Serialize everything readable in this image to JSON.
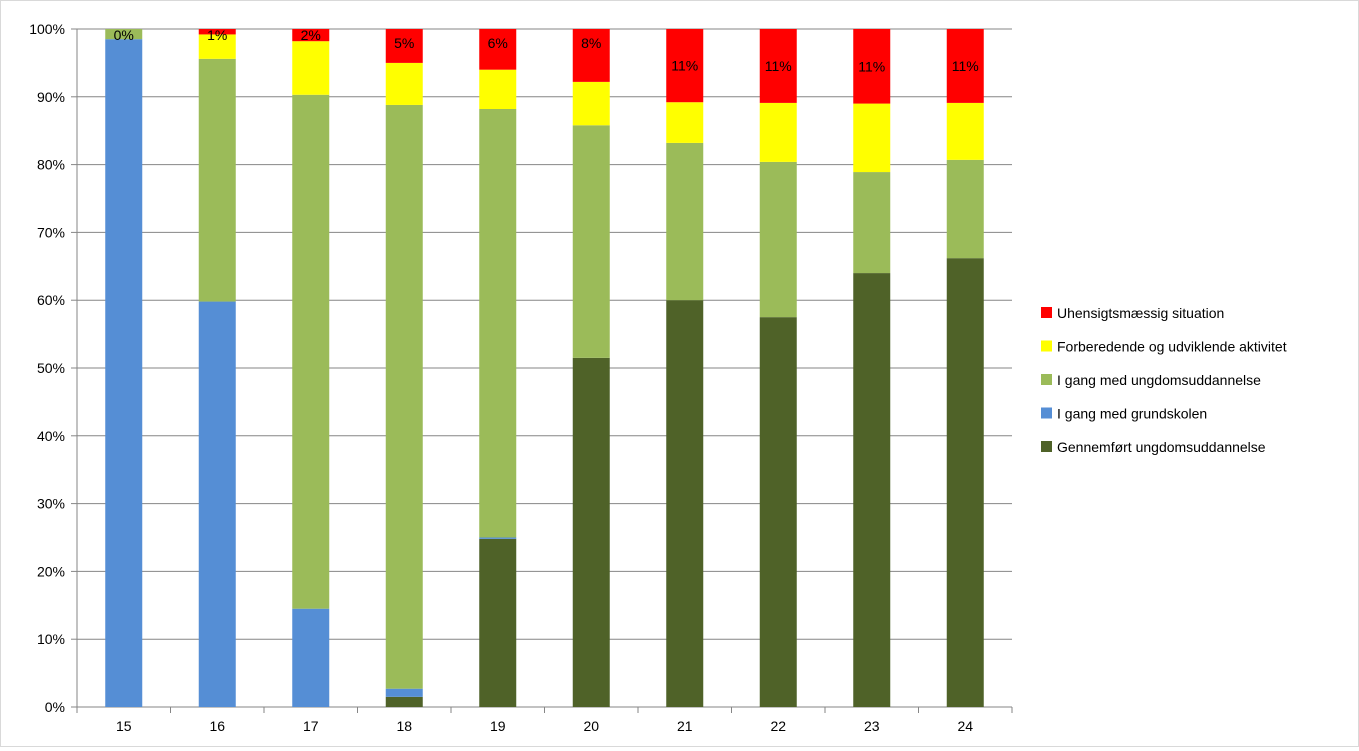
{
  "chart_data": {
    "type": "bar",
    "stacked": true,
    "percent": true,
    "title": "",
    "xlabel": "",
    "ylabel": "",
    "ylim": [
      0,
      100
    ],
    "y_ticks": [
      "0%",
      "10%",
      "20%",
      "30%",
      "40%",
      "50%",
      "60%",
      "70%",
      "80%",
      "90%",
      "100%"
    ],
    "grid": true,
    "legend_position": "right",
    "categories": [
      "15",
      "16",
      "17",
      "18",
      "19",
      "20",
      "21",
      "22",
      "23",
      "24"
    ],
    "series": [
      {
        "name": "Gennemført ungdomsuddannelse",
        "color": "#4f6228",
        "values": [
          0,
          0,
          0,
          1.5,
          24.8,
          51.5,
          60.0,
          57.5,
          64.0,
          66.2
        ]
      },
      {
        "name": "I gang med grundskolen",
        "color": "#558ed5",
        "values": [
          98.5,
          59.8,
          14.5,
          1.2,
          0.2,
          0,
          0,
          0,
          0,
          0
        ]
      },
      {
        "name": "I gang med ungdomsuddannelse",
        "color": "#9bbb59",
        "values": [
          1.5,
          35.8,
          75.8,
          86.1,
          63.2,
          34.3,
          23.2,
          22.9,
          14.9,
          14.5
        ]
      },
      {
        "name": "Forberedende og udviklende aktivitet",
        "color": "#ffff00",
        "values": [
          0,
          3.6,
          7.9,
          6.2,
          5.8,
          6.4,
          6.0,
          8.7,
          10.1,
          8.4
        ]
      },
      {
        "name": "Uhensigtsmæssig situation",
        "color": "#ff0000",
        "values": [
          0,
          0.8,
          1.8,
          5.0,
          6.0,
          7.8,
          10.8,
          10.9,
          11.0,
          10.9
        ]
      }
    ],
    "data_labels": [
      "0%",
      "1%",
      "2%",
      "5%",
      "6%",
      "8%",
      "11%",
      "11%",
      "11%",
      "11%"
    ],
    "legend_order": [
      "Uhensigtsmæssig situation",
      "Forberedende og udviklende aktivitet",
      "I gang med ungdomsuddannelse",
      "I gang med grundskolen",
      "Gennemført ungdomsuddannelse"
    ]
  }
}
